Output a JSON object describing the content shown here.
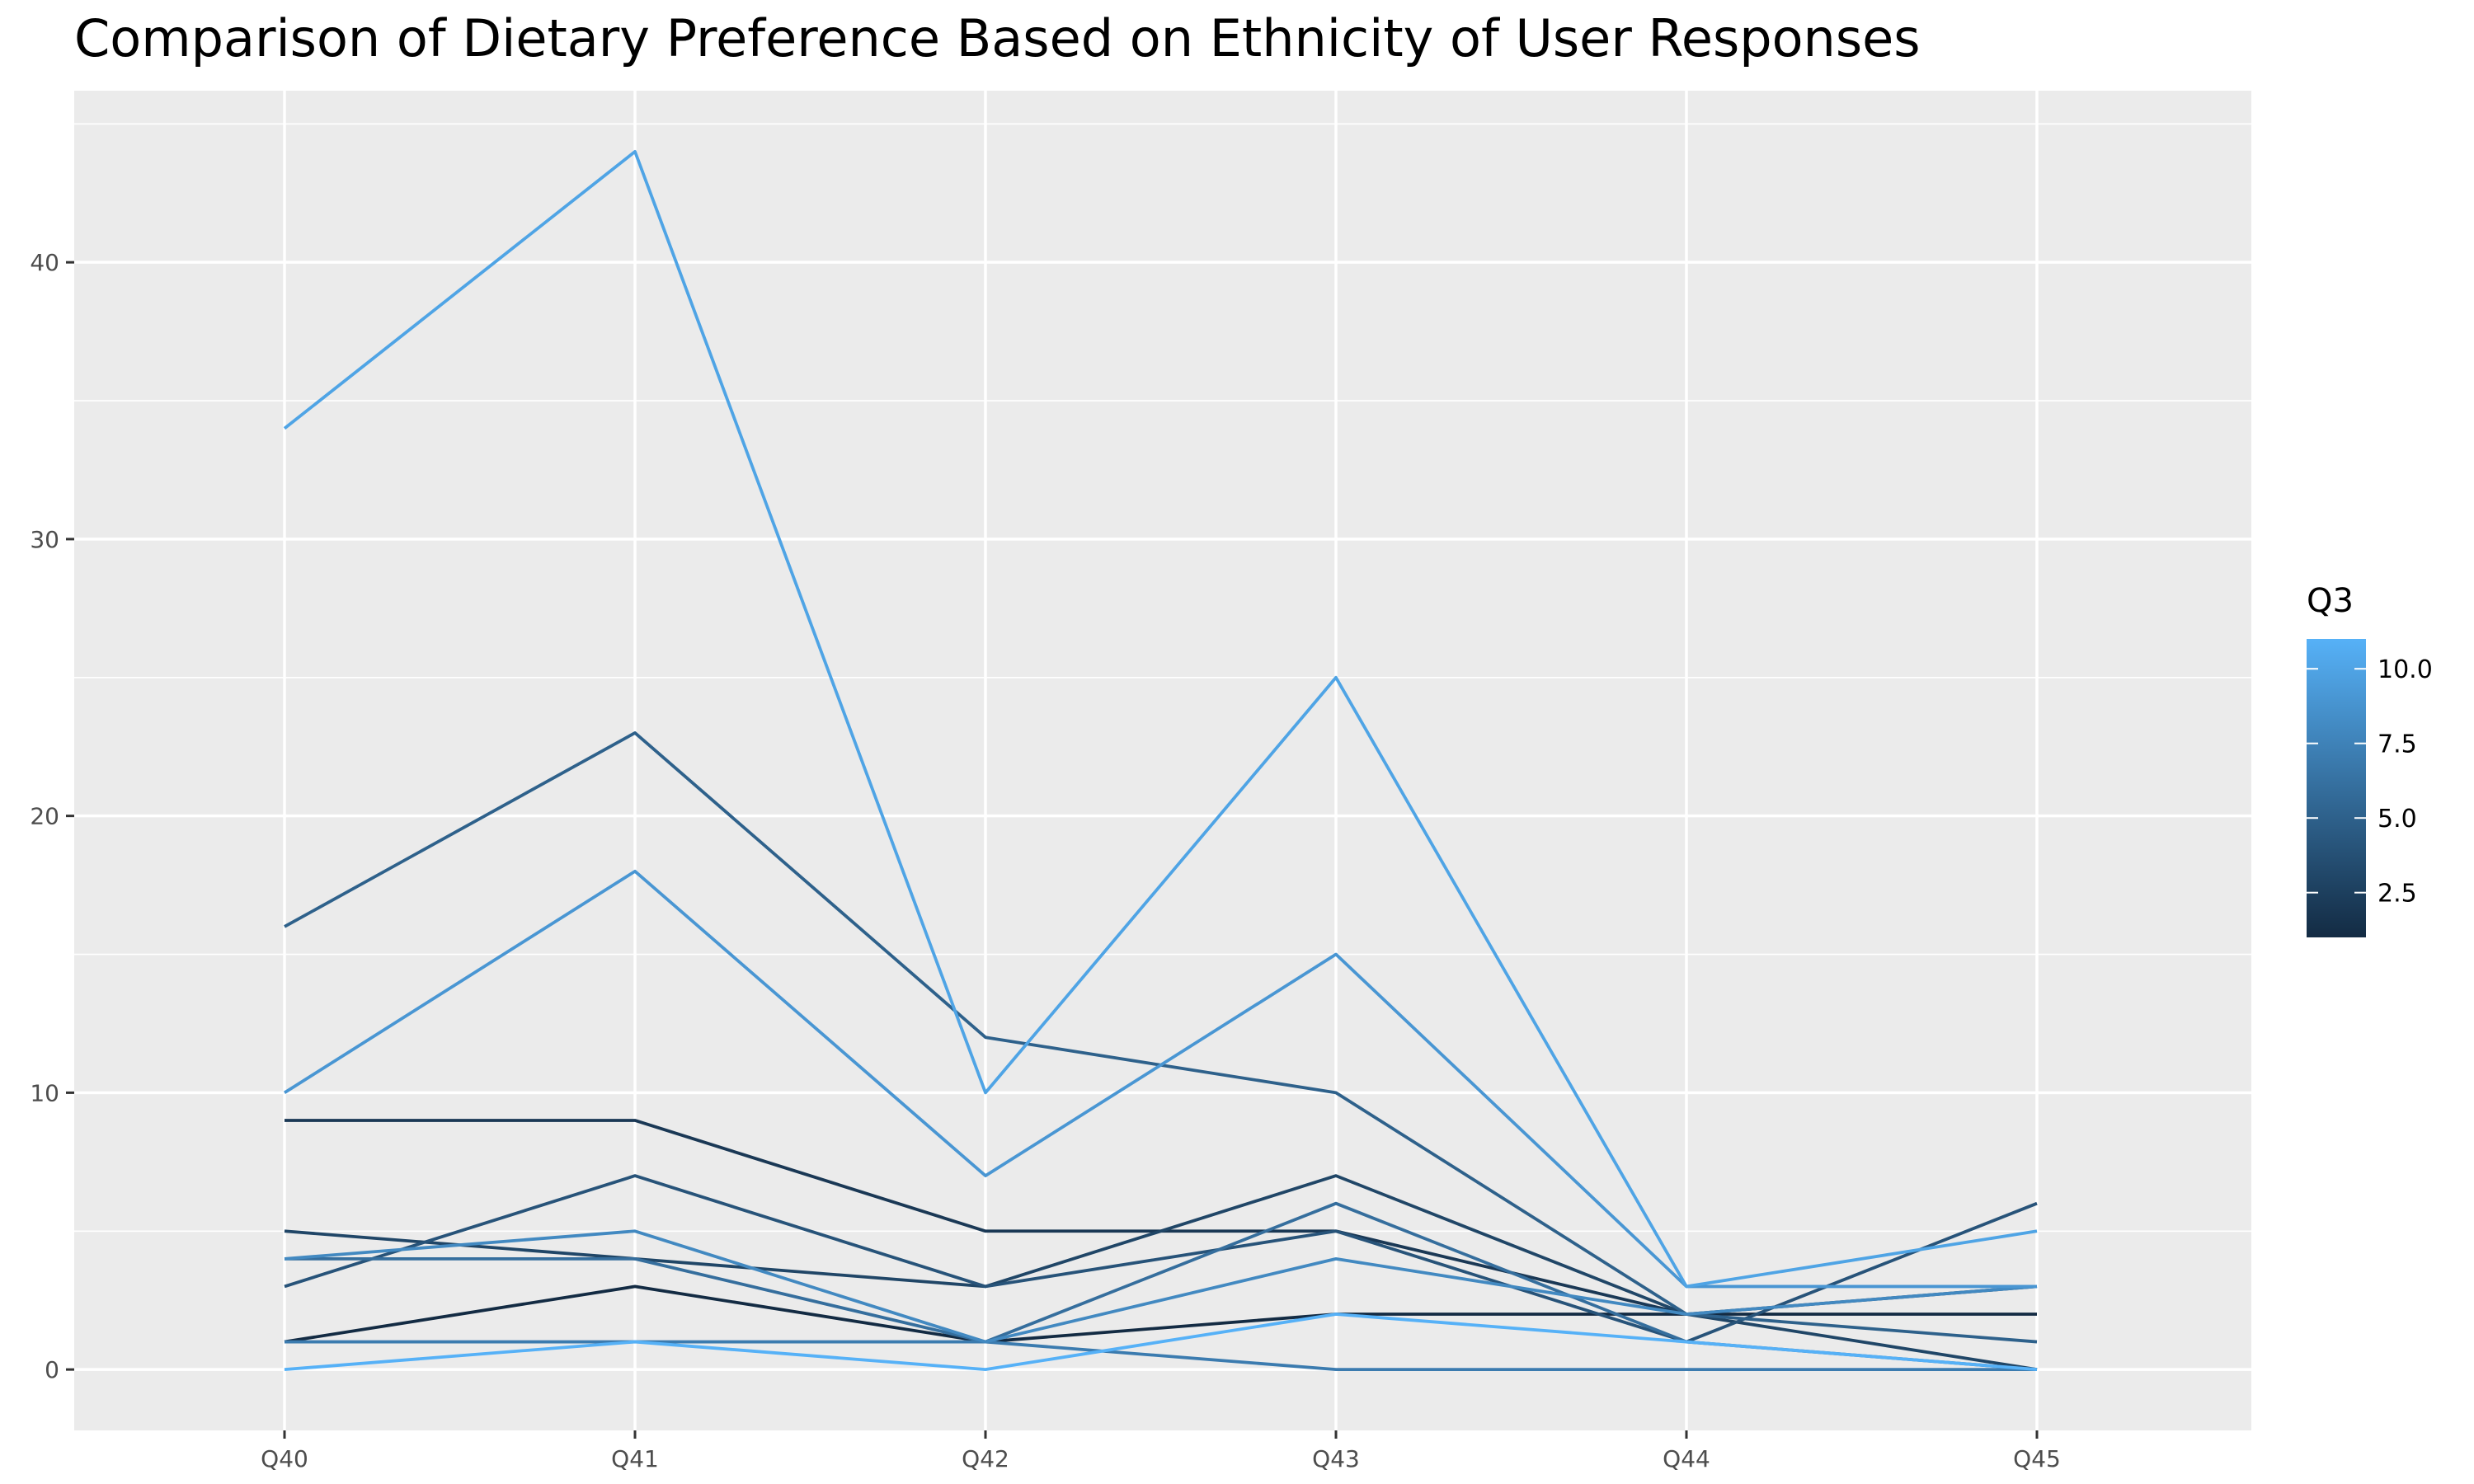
{
  "chart_data": {
    "type": "line",
    "title": "Comparison of Dietary Preference Based on Ethnicity of User Responses",
    "xlabel": "",
    "ylabel": "",
    "categories": [
      "Q40",
      "Q41",
      "Q42",
      "Q43",
      "Q44",
      "Q45"
    ],
    "ylim": [
      -2.2,
      46.2
    ],
    "y_ticks": [
      0,
      10,
      20,
      30,
      40
    ],
    "grid": true,
    "legend": {
      "title": "Q3",
      "placement": "right",
      "type": "colorbar",
      "range": [
        1,
        11
      ],
      "ticks": [
        2.5,
        5.0,
        7.5,
        10.0
      ],
      "tick_labels": [
        "2.5",
        "5.0",
        "7.5",
        "10.0"
      ],
      "low_color": "#132b43",
      "high_color": "#56b1f7"
    },
    "series": [
      {
        "q3": 1,
        "values": [
          1,
          3,
          1,
          2,
          2,
          2
        ]
      },
      {
        "q3": 2,
        "values": [
          9,
          9,
          5,
          5,
          2,
          3
        ]
      },
      {
        "q3": 3,
        "values": [
          5,
          4,
          3,
          7,
          2,
          0
        ]
      },
      {
        "q3": 4,
        "values": [
          3,
          7,
          3,
          5,
          1,
          6
        ]
      },
      {
        "q3": 5,
        "values": [
          16,
          23,
          12,
          10,
          2,
          1
        ]
      },
      {
        "q3": 6,
        "values": [
          4,
          4,
          1,
          6,
          1,
          0
        ]
      },
      {
        "q3": 7,
        "values": [
          1,
          1,
          1,
          0,
          0,
          0
        ]
      },
      {
        "q3": 8,
        "values": [
          4,
          5,
          1,
          4,
          2,
          3
        ]
      },
      {
        "q3": 9,
        "values": [
          10,
          18,
          7,
          15,
          3,
          3
        ]
      },
      {
        "q3": 10,
        "values": [
          34,
          44,
          10,
          25,
          3,
          5
        ]
      },
      {
        "q3": 11,
        "values": [
          0,
          1,
          0,
          2,
          1,
          0
        ]
      }
    ]
  }
}
